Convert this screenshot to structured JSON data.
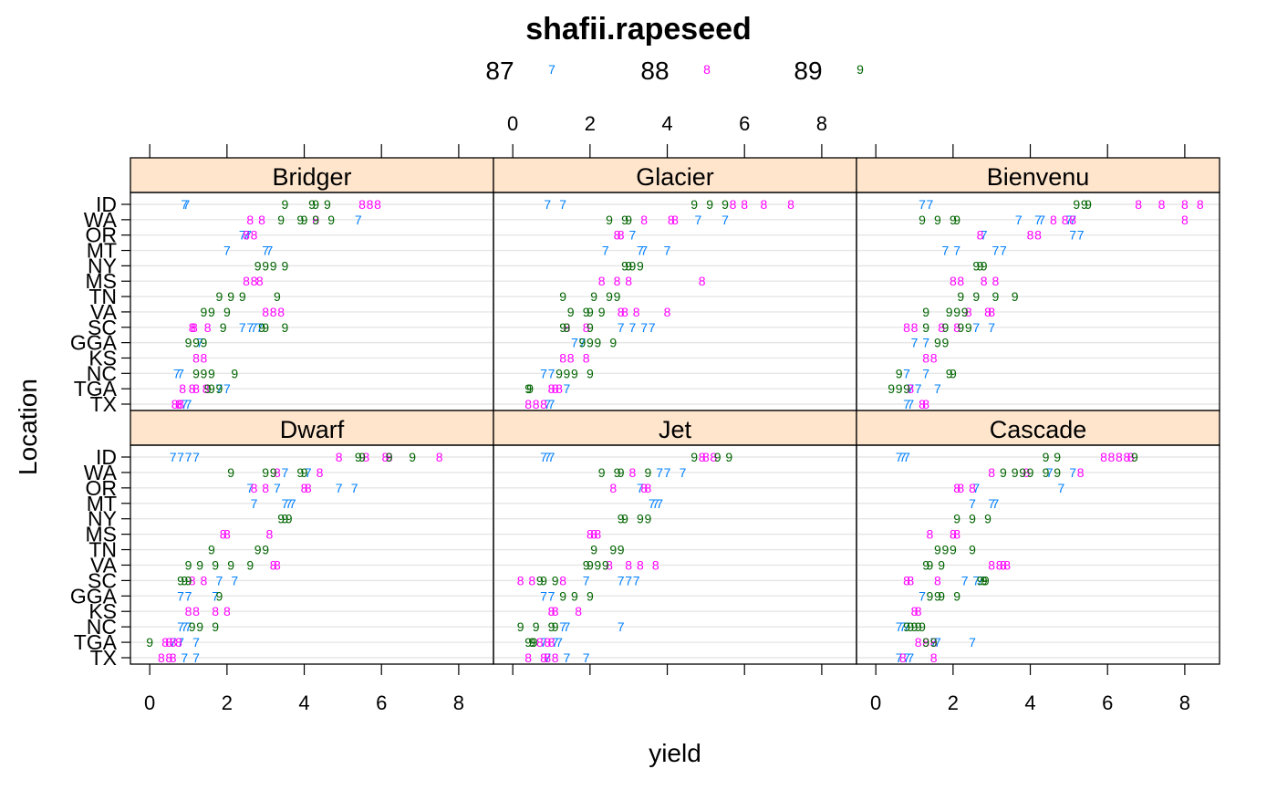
{
  "chart_data": {
    "type": "scatter",
    "title": "shafii.rapeseed",
    "xlabel": "yield",
    "ylabel": "Location",
    "xlim": [
      -0.5,
      8.9
    ],
    "xticks": [
      0,
      2,
      4,
      6,
      8
    ],
    "xtick_labels": [
      "0",
      "2",
      "4",
      "6",
      "8"
    ],
    "grid": true,
    "legend_position": "top",
    "layout": {
      "columns": 3,
      "rows": 2
    },
    "locations": [
      "ID",
      "WA",
      "OR",
      "MT",
      "NY",
      "MS",
      "TN",
      "VA",
      "SC",
      "GGA",
      "KS",
      "NC",
      "TGA",
      "TX"
    ],
    "series": [
      {
        "name": "87",
        "symbol": "7",
        "color": "#0080ff"
      },
      {
        "name": "88",
        "symbol": "8",
        "color": "#ff00ff"
      },
      {
        "name": "89",
        "symbol": "9",
        "color": "#006400"
      }
    ],
    "panels": [
      {
        "name": "Bridger",
        "data": {
          "87": [
            [
              0.9,
              0.95
            ],
            [
              5.4
            ],
            [
              2.4,
              2.5,
              2.55
            ],
            [
              2.0,
              3.0,
              3.1
            ],
            [],
            [],
            [],
            [],
            [
              2.4,
              2.6,
              2.7,
              2.85
            ],
            [
              1.3
            ],
            [],
            [
              0.7,
              0.8
            ],
            [
              1.8,
              2.0
            ],
            [
              0.9,
              1.0
            ]
          ],
          "88": [
            [
              5.5,
              5.7,
              5.9
            ],
            [
              2.6,
              2.9,
              4.3
            ],
            [
              2.5,
              2.7
            ],
            [],
            [],
            [
              2.5,
              2.7,
              2.85
            ],
            [],
            [
              3.0,
              3.2,
              3.4
            ],
            [
              1.1,
              1.15,
              1.5
            ],
            [],
            [
              1.2,
              1.4
            ],
            [],
            [
              0.85,
              1.1,
              1.2,
              1.45
            ],
            [
              0.65,
              0.75,
              0.8
            ]
          ],
          "89": [
            [
              3.5,
              4.2,
              4.3,
              4.6
            ],
            [
              3.4,
              3.9,
              4.0,
              4.3,
              4.7
            ],
            [],
            [],
            [
              2.8,
              3.0,
              3.2,
              3.5
            ],
            [],
            [
              1.8,
              2.1,
              2.4,
              3.3
            ],
            [
              1.4,
              1.6,
              2.0
            ],
            [
              1.9,
              2.9,
              3.0,
              3.5
            ],
            [
              1.0,
              1.2,
              1.4
            ],
            [],
            [
              1.2,
              1.4,
              1.6,
              2.2
            ],
            [
              1.5,
              1.6,
              1.8
            ],
            []
          ]
        }
      },
      {
        "name": "Glacier",
        "data": {
          "87": [
            [
              0.9,
              1.3
            ],
            [
              4.8,
              5.5
            ],
            [
              3.1
            ],
            [
              2.4,
              3.3,
              3.4,
              4.0
            ],
            [],
            [],
            [],
            [],
            [
              2.8,
              3.1,
              3.4,
              3.6
            ],
            [
              1.6,
              1.8
            ],
            [],
            [
              0.8,
              1.0
            ],
            [
              1.4
            ],
            [
              0.9,
              1.0
            ]
          ],
          "88": [
            [
              5.7,
              6.0,
              6.5,
              7.2
            ],
            [
              3.4,
              4.1,
              4.2
            ],
            [
              2.7,
              2.8
            ],
            [],
            [],
            [
              2.3,
              2.7,
              3.0,
              4.9
            ],
            [],
            [
              2.8,
              2.9,
              3.2,
              4.0
            ],
            [
              1.4,
              1.9
            ],
            [],
            [
              1.3,
              1.5,
              1.9
            ],
            [],
            [
              1.0,
              1.1,
              1.2
            ],
            [
              0.4,
              0.6,
              0.8
            ]
          ],
          "89": [
            [
              4.7,
              5.1,
              5.5
            ],
            [
              2.5,
              2.9,
              3.0
            ],
            [],
            [],
            [
              2.9,
              3.0,
              3.1,
              3.3
            ],
            [],
            [
              1.3,
              2.1,
              2.5,
              2.7
            ],
            [
              1.5,
              1.9,
              2.0,
              2.3
            ],
            [
              1.3,
              1.4,
              2.0
            ],
            [
              1.8,
              2.0,
              2.2,
              2.6
            ],
            [],
            [
              1.2,
              1.4,
              1.6,
              2.0
            ],
            [
              0.4,
              0.45
            ],
            []
          ]
        }
      },
      {
        "name": "Bienvenu",
        "data": {
          "87": [
            [
              1.2,
              1.4
            ],
            [
              3.7,
              4.2,
              4.3,
              5.0,
              5.1
            ],
            [
              2.8,
              5.1,
              5.3
            ],
            [
              1.8,
              2.1,
              3.1,
              3.3
            ],
            [],
            [],
            [],
            [],
            [
              2.6,
              3.0
            ],
            [
              1.0,
              1.3
            ],
            [],
            [
              0.8,
              1.3
            ],
            [
              0.9,
              1.1,
              1.6
            ],
            [
              0.8,
              0.9
            ]
          ],
          "88": [
            [
              6.8,
              7.4,
              8.0,
              8.4
            ],
            [
              4.6,
              4.9,
              5.1,
              8.0
            ],
            [
              2.7,
              4.0,
              4.2
            ],
            [],
            [],
            [
              2.0,
              2.2,
              2.8,
              3.1
            ],
            [],
            [
              2.4,
              2.9,
              3.0
            ],
            [
              0.8,
              1.0,
              1.7,
              2.1
            ],
            [],
            [
              1.3,
              1.5
            ],
            [],
            [
              0.9
            ],
            [
              1.2,
              1.3
            ]
          ],
          "89": [
            [
              5.2,
              5.4,
              5.5
            ],
            [
              1.2,
              1.6,
              2.0,
              2.1
            ],
            [],
            [],
            [
              2.6,
              2.7,
              2.8
            ],
            [],
            [
              2.2,
              2.6,
              3.1,
              3.6
            ],
            [
              1.3,
              1.9,
              2.1,
              2.3
            ],
            [
              1.3,
              1.8,
              2.2,
              2.4
            ],
            [
              1.6,
              1.8
            ],
            [],
            [
              0.6,
              1.9,
              2.0
            ],
            [
              0.4,
              0.6,
              0.8
            ],
            []
          ]
        }
      },
      {
        "name": "Dwarf",
        "data": {
          "87": [
            [
              0.6,
              0.8,
              1.0,
              1.2
            ],
            [
              3.5,
              4.1
            ],
            [
              2.6,
              3.3,
              4.9,
              5.3
            ],
            [
              2.7,
              3.5,
              3.6,
              3.7
            ],
            [],
            [],
            [],
            [],
            [
              1.8,
              2.2
            ],
            [
              0.8,
              1.0,
              1.7
            ],
            [],
            [
              0.8,
              0.9,
              1.0
            ],
            [
              0.6,
              0.8,
              1.2
            ],
            [
              0.9,
              1.2
            ]
          ],
          "88": [
            [
              4.9,
              5.6,
              6.1,
              6.2,
              7.5
            ],
            [
              3.3,
              4.4
            ],
            [
              2.7,
              3.0,
              4.0,
              4.1
            ],
            [],
            [],
            [
              1.9,
              2.0,
              3.1
            ],
            [],
            [
              3.2,
              3.3
            ],
            [
              1.1,
              1.4
            ],
            [],
            [
              1.0,
              1.2,
              1.7,
              2.0
            ],
            [],
            [
              0.4,
              0.5,
              0.6,
              0.75
            ],
            [
              0.3,
              0.5,
              0.6
            ]
          ],
          "89": [
            [
              5.4,
              5.5,
              6.2,
              6.8
            ],
            [
              2.1,
              3.0,
              3.2,
              3.9,
              4.0
            ],
            [],
            [],
            [
              3.4,
              3.5,
              3.6
            ],
            [],
            [
              1.6,
              2.8,
              3.0
            ],
            [
              1.0,
              1.3,
              1.7,
              2.1,
              2.6
            ],
            [
              0.8,
              0.9,
              1.0
            ],
            [
              1.8
            ],
            [],
            [
              1.1,
              1.3,
              1.7
            ],
            [
              0.0
            ],
            []
          ]
        }
      },
      {
        "name": "Jet",
        "data": {
          "87": [
            [
              0.8,
              0.9,
              1.0
            ],
            [
              3.8,
              4.0,
              4.4
            ],
            [
              3.3
            ],
            [
              3.6,
              3.7,
              3.8
            ],
            [],
            [],
            [],
            [],
            [
              1.9,
              2.8,
              3.0,
              3.2
            ],
            [
              0.8,
              1.0
            ],
            [],
            [
              1.3,
              1.4,
              2.8
            ],
            [
              0.8,
              1.1,
              1.2
            ],
            [
              0.9,
              1.4,
              1.9
            ]
          ],
          "88": [
            [
              4.9,
              5.0,
              5.2
            ],
            [
              3.1
            ],
            [
              2.6,
              3.4,
              3.5
            ],
            [],
            [],
            [
              2.0,
              2.1,
              2.2
            ],
            [],
            [
              2.5,
              3.0,
              3.3,
              3.7
            ],
            [
              0.2,
              0.5,
              1.3
            ],
            [],
            [
              1.0,
              1.1,
              1.7
            ],
            [],
            [
              0.7,
              0.9,
              1.0
            ],
            [
              0.4,
              0.8,
              0.9,
              1.1
            ]
          ],
          "89": [
            [
              4.7,
              5.3,
              5.6
            ],
            [
              2.3,
              2.7,
              2.8,
              3.5
            ],
            [],
            [],
            [
              2.8,
              2.9,
              3.3,
              3.5
            ],
            [],
            [
              2.1,
              2.6,
              2.8
            ],
            [
              1.9,
              2.0,
              2.2,
              2.4
            ],
            [
              0.7,
              0.8,
              1.1
            ],
            [
              1.3,
              1.6,
              2.0
            ],
            [],
            [
              0.2,
              0.6,
              1.0,
              1.1
            ],
            [
              0.4,
              0.5,
              0.55
            ],
            []
          ]
        }
      },
      {
        "name": "Cascade",
        "data": {
          "87": [
            [
              0.6,
              0.7,
              0.8
            ],
            [
              4.5,
              5.1
            ],
            [
              2.6,
              4.8
            ],
            [
              2.5,
              3.0,
              3.1
            ],
            [],
            [],
            [],
            [],
            [
              2.3,
              2.6,
              2.7
            ],
            [
              1.2
            ],
            [],
            [
              0.6,
              0.7,
              0.8
            ],
            [
              1.5,
              1.6,
              2.5
            ],
            [
              0.6,
              0.8,
              0.9
            ]
          ],
          "88": [
            [
              5.9,
              6.1,
              6.3,
              6.5,
              6.6
            ],
            [
              3.0,
              3.9,
              5.3
            ],
            [
              2.1,
              2.2,
              2.5
            ],
            [],
            [],
            [
              1.4,
              2.0,
              2.1
            ],
            [],
            [
              3.0,
              3.2,
              3.3,
              3.4
            ],
            [
              0.8,
              0.9,
              1.6
            ],
            [],
            [
              1.0,
              1.1
            ],
            [],
            [
              1.1,
              1.3,
              1.5
            ],
            [
              0.7,
              1.5
            ]
          ],
          "89": [
            [
              4.4,
              4.7,
              6.7
            ],
            [
              3.3,
              3.6,
              3.8,
              4.0,
              4.4,
              4.7
            ],
            [],
            [],
            [
              2.1,
              2.5,
              2.9
            ],
            [],
            [
              1.6,
              1.8,
              2.0,
              2.5
            ],
            [
              1.3,
              1.4,
              1.7
            ],
            [
              2.7,
              2.8,
              2.85
            ],
            [
              1.4,
              1.6,
              1.7,
              2.1
            ],
            [],
            [
              0.8,
              0.9,
              1.0,
              1.1,
              1.2
            ],
            [
              1.3,
              1.5
            ],
            []
          ]
        }
      }
    ]
  }
}
